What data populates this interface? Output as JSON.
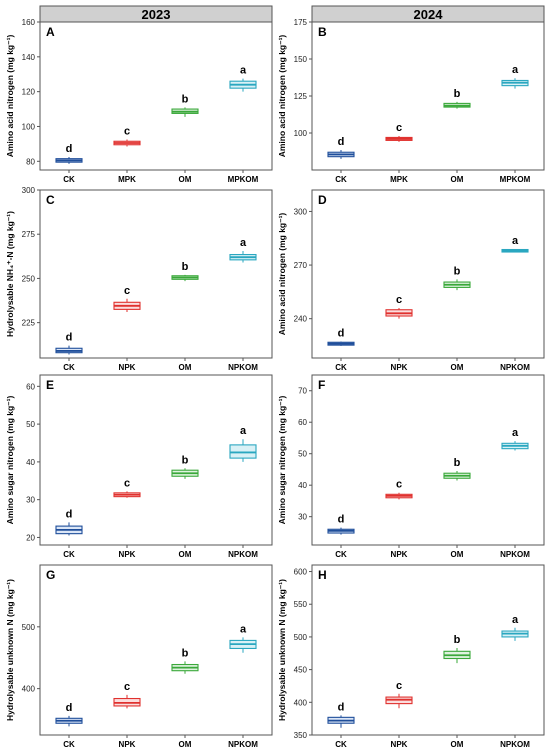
{
  "colors": {
    "CK": "#1f4e9a",
    "NPK": "#e0312e",
    "OM": "#3aa83a",
    "COMB": "#2aa7c0",
    "strip_bg": "#d0d0d0",
    "frame": "#555555"
  },
  "strips": [
    "2023",
    "2024"
  ],
  "chart_data": [
    {
      "type": "box",
      "panel": "A",
      "year": "2023",
      "ylabel": "Amino acid nitrogen (mg kg⁻¹)",
      "ylim": [
        75,
        160
      ],
      "yticks": [
        80,
        100,
        120,
        140,
        160
      ],
      "categories": [
        "CK",
        "MPK",
        "OM",
        "MPKOM"
      ],
      "boxes": [
        {
          "q1": 79.5,
          "median": 80.5,
          "q3": 81.5,
          "lo": 78.5,
          "hi": 82.5,
          "letter": "d"
        },
        {
          "q1": 89.5,
          "median": 90.5,
          "q3": 91.5,
          "lo": 88.5,
          "hi": 92.5,
          "letter": "c"
        },
        {
          "q1": 107.5,
          "median": 108.5,
          "q3": 110,
          "lo": 105.5,
          "hi": 111,
          "letter": "b"
        },
        {
          "q1": 122,
          "median": 124,
          "q3": 126,
          "lo": 120,
          "hi": 127.5,
          "letter": "a"
        }
      ]
    },
    {
      "type": "box",
      "panel": "B",
      "year": "2024",
      "ylabel": "Amino acid nitrogen (mg kg⁻¹)",
      "ylim": [
        75,
        175
      ],
      "yticks": [
        100,
        125,
        150,
        175
      ],
      "categories": [
        "CK",
        "MPK",
        "OM",
        "MPKOM"
      ],
      "boxes": [
        {
          "q1": 84,
          "median": 85.5,
          "q3": 87,
          "lo": 82.5,
          "hi": 88.5,
          "letter": "d"
        },
        {
          "q1": 95,
          "median": 96,
          "q3": 97,
          "lo": 94,
          "hi": 98,
          "letter": "c"
        },
        {
          "q1": 117.5,
          "median": 118.5,
          "q3": 120,
          "lo": 116.5,
          "hi": 121,
          "letter": "b"
        },
        {
          "q1": 132,
          "median": 134,
          "q3": 135.5,
          "lo": 130,
          "hi": 137,
          "letter": "a"
        }
      ]
    },
    {
      "type": "box",
      "panel": "C",
      "year": "2023",
      "ylabel": "Hydrolysable NH₄⁺-N (mg kg⁻¹)",
      "ylim": [
        205,
        300
      ],
      "yticks": [
        225,
        250,
        275,
        300
      ],
      "categories": [
        "CK",
        "NPK",
        "OM",
        "NPKOM"
      ],
      "boxes": [
        {
          "q1": 208,
          "median": 209,
          "q3": 210.5,
          "lo": 207,
          "hi": 212,
          "letter": "d"
        },
        {
          "q1": 232.5,
          "median": 234.5,
          "q3": 236.5,
          "lo": 231,
          "hi": 238.5,
          "letter": "c"
        },
        {
          "q1": 249.5,
          "median": 250.5,
          "q3": 251.5,
          "lo": 248.5,
          "hi": 252,
          "letter": "b"
        },
        {
          "q1": 260.5,
          "median": 262,
          "q3": 263.5,
          "lo": 259,
          "hi": 265.5,
          "letter": "a"
        }
      ]
    },
    {
      "type": "box",
      "panel": "D",
      "year": "2024",
      "ylabel": "Amino acid nitrogen (mg kg⁻¹)",
      "ylim": [
        218,
        312
      ],
      "yticks": [
        240,
        270,
        300
      ],
      "categories": [
        "CK",
        "NPK",
        "OM",
        "NPKOM"
      ],
      "boxes": [
        {
          "q1": 225.2,
          "median": 226,
          "q3": 226.8,
          "lo": 224.8,
          "hi": 227.2,
          "letter": "d"
        },
        {
          "q1": 241.5,
          "median": 243,
          "q3": 245,
          "lo": 240,
          "hi": 246,
          "letter": "c"
        },
        {
          "q1": 257.5,
          "median": 259,
          "q3": 260.5,
          "lo": 256,
          "hi": 262,
          "letter": "b"
        },
        {
          "q1": 277.3,
          "median": 278,
          "q3": 278.7,
          "lo": 277,
          "hi": 279,
          "letter": "a"
        }
      ]
    },
    {
      "type": "box",
      "panel": "E",
      "year": "2023",
      "ylabel": "Amino sugar nitrogen (mg kg⁻¹)",
      "ylim": [
        18,
        63
      ],
      "yticks": [
        20,
        30,
        40,
        50,
        60
      ],
      "categories": [
        "CK",
        "NPK",
        "OM",
        "NPKOM"
      ],
      "boxes": [
        {
          "q1": 21,
          "median": 22,
          "q3": 23,
          "lo": 20.5,
          "hi": 24,
          "letter": "d"
        },
        {
          "q1": 30.8,
          "median": 31.3,
          "q3": 31.8,
          "lo": 30.5,
          "hi": 32.2,
          "letter": "c"
        },
        {
          "q1": 36.2,
          "median": 37,
          "q3": 37.8,
          "lo": 35.5,
          "hi": 38.3,
          "letter": "b"
        },
        {
          "q1": 41,
          "median": 42.5,
          "q3": 44.5,
          "lo": 40,
          "hi": 46,
          "letter": "a"
        }
      ]
    },
    {
      "type": "box",
      "panel": "F",
      "year": "2024",
      "ylabel": "Amino sugar nitrogen (mg kg⁻¹)",
      "ylim": [
        21,
        75
      ],
      "yticks": [
        30,
        40,
        50,
        60,
        70
      ],
      "categories": [
        "CK",
        "NPK",
        "OM",
        "NPKOM"
      ],
      "boxes": [
        {
          "q1": 24.8,
          "median": 25.5,
          "q3": 26,
          "lo": 24.3,
          "hi": 26.5,
          "letter": "d"
        },
        {
          "q1": 36,
          "median": 36.6,
          "q3": 37.1,
          "lo": 35.5,
          "hi": 37.6,
          "letter": "c"
        },
        {
          "q1": 42.2,
          "median": 43,
          "q3": 43.8,
          "lo": 41.5,
          "hi": 44.5,
          "letter": "b"
        },
        {
          "q1": 51.6,
          "median": 52.5,
          "q3": 53.3,
          "lo": 51,
          "hi": 54,
          "letter": "a"
        }
      ]
    },
    {
      "type": "box",
      "panel": "G",
      "year": "2023",
      "ylabel": "Hydrolysable unknown N (mg kg⁻¹)",
      "ylim": [
        325,
        600
      ],
      "yticks": [
        400,
        500
      ],
      "categories": [
        "CK",
        "NPK",
        "OM",
        "NPKOM"
      ],
      "boxes": [
        {
          "q1": 344,
          "median": 348,
          "q3": 352,
          "lo": 339,
          "hi": 356,
          "letter": "d"
        },
        {
          "q1": 372,
          "median": 377,
          "q3": 384,
          "lo": 368,
          "hi": 390,
          "letter": "c"
        },
        {
          "q1": 429,
          "median": 434,
          "q3": 439,
          "lo": 424,
          "hi": 444,
          "letter": "b"
        },
        {
          "q1": 465,
          "median": 472,
          "q3": 478,
          "lo": 458,
          "hi": 483,
          "letter": "a"
        }
      ]
    },
    {
      "type": "box",
      "panel": "H",
      "year": "2024",
      "ylabel": "Hydrolysable unknown N (mg kg⁻¹)",
      "ylim": [
        350,
        610
      ],
      "yticks": [
        350,
        400,
        450,
        500,
        550,
        600
      ],
      "categories": [
        "CK",
        "NPK",
        "OM",
        "NPKOM"
      ],
      "boxes": [
        {
          "q1": 368,
          "median": 372,
          "q3": 377,
          "lo": 361,
          "hi": 380,
          "letter": "d"
        },
        {
          "q1": 398,
          "median": 404,
          "q3": 408,
          "lo": 391,
          "hi": 413,
          "letter": "c"
        },
        {
          "q1": 467,
          "median": 472,
          "q3": 478,
          "lo": 460,
          "hi": 483,
          "letter": "b"
        },
        {
          "q1": 500,
          "median": 505,
          "q3": 509,
          "lo": 494,
          "hi": 514,
          "letter": "a"
        }
      ]
    }
  ]
}
